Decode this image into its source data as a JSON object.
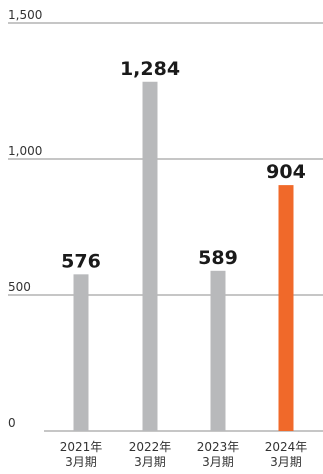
{
  "chart_data": {
    "type": "bar",
    "categories": [
      [
        "2021年",
        "3月期"
      ],
      [
        "2022年",
        "3月期"
      ],
      [
        "2023年",
        "3月期"
      ],
      [
        "2024年",
        "3月期"
      ]
    ],
    "values": [
      576,
      1284,
      589,
      904
    ],
    "value_labels": [
      "576",
      "1,284",
      "589",
      "904"
    ],
    "ylim": [
      0,
      1500
    ],
    "yticks": [
      0,
      500,
      1000,
      1500
    ],
    "ytick_labels": [
      "0",
      "500",
      "1,000",
      "1,500"
    ],
    "grid": true,
    "colors": {
      "default": "#b8b9bb",
      "highlight": "#f0692a"
    },
    "highlight_index": 3
  }
}
